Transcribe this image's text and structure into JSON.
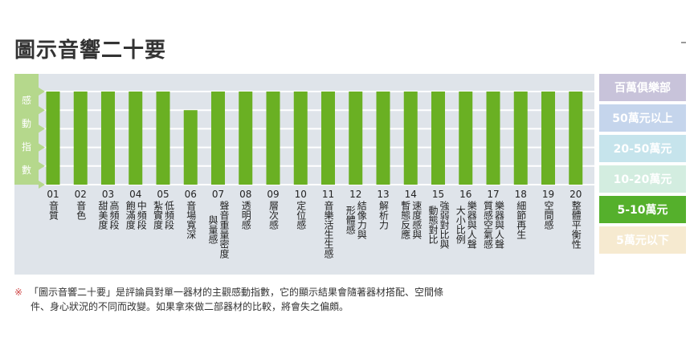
{
  "title": "圖示音響二十要",
  "chart_data": {
    "type": "bar",
    "ylabel": "感動指數",
    "ylim": [
      0,
      100
    ],
    "categories": [
      {
        "num": "01",
        "cols": [
          "音質"
        ]
      },
      {
        "num": "02",
        "cols": [
          "音色"
        ]
      },
      {
        "num": "03",
        "cols": [
          "高頻段",
          "甜美度"
        ]
      },
      {
        "num": "04",
        "cols": [
          "中頻段",
          "飽滿度"
        ]
      },
      {
        "num": "05",
        "cols": [
          "低頻段",
          "紮實度"
        ]
      },
      {
        "num": "06",
        "cols": [
          "音場寬深"
        ]
      },
      {
        "num": "07",
        "cols": [
          "聲音重量密度",
          "與量感"
        ]
      },
      {
        "num": "08",
        "cols": [
          "透明感"
        ]
      },
      {
        "num": "09",
        "cols": [
          "層次感"
        ]
      },
      {
        "num": "10",
        "cols": [
          "定位感"
        ]
      },
      {
        "num": "11",
        "cols": [
          "音樂活生生感"
        ]
      },
      {
        "num": "12",
        "cols": [
          "結像力與",
          "形體感"
        ]
      },
      {
        "num": "13",
        "cols": [
          "解析力"
        ]
      },
      {
        "num": "14",
        "cols": [
          "速度感與",
          "暫態反應"
        ]
      },
      {
        "num": "15",
        "cols": [
          "強弱對比與",
          "動態對比"
        ]
      },
      {
        "num": "16",
        "cols": [
          "樂器與人聲",
          "大小比例"
        ]
      },
      {
        "num": "17",
        "cols": [
          "樂器與人聲",
          "質感空氣感"
        ]
      },
      {
        "num": "18",
        "cols": [
          "細節再生"
        ]
      },
      {
        "num": "19",
        "cols": [
          "空間感"
        ]
      },
      {
        "num": "20",
        "cols": [
          "整體平衡性"
        ]
      }
    ],
    "values": [
      100,
      100,
      100,
      100,
      100,
      80,
      100,
      100,
      100,
      100,
      100,
      100,
      100,
      100,
      100,
      100,
      100,
      100,
      100,
      100
    ],
    "bar_color": "#6ab023"
  },
  "legend": [
    {
      "label": "百萬俱樂部",
      "color": "#c8c3da",
      "active": false
    },
    {
      "label": "50萬元以上",
      "color": "#c5d5ec",
      "active": false
    },
    {
      "label": "20-50萬元",
      "color": "#c6e4ec",
      "active": false
    },
    {
      "label": "10-20萬元",
      "color": "#d3ede0",
      "active": false
    },
    {
      "label": "5-10萬元",
      "color": "#55b02c",
      "active": true
    },
    {
      "label": "5萬元以下",
      "color": "#f6ead0",
      "active": false
    }
  ],
  "note": {
    "mark": "※",
    "line1": "「圖示音響二十要」是評論員對單一器材的主觀感動指數，它的顯示結果會隨著器材搭配、空間條",
    "line2": "件、身心狀況的不同而改變。如果拿來做二部器材的比較，將會失之偏頗。"
  }
}
